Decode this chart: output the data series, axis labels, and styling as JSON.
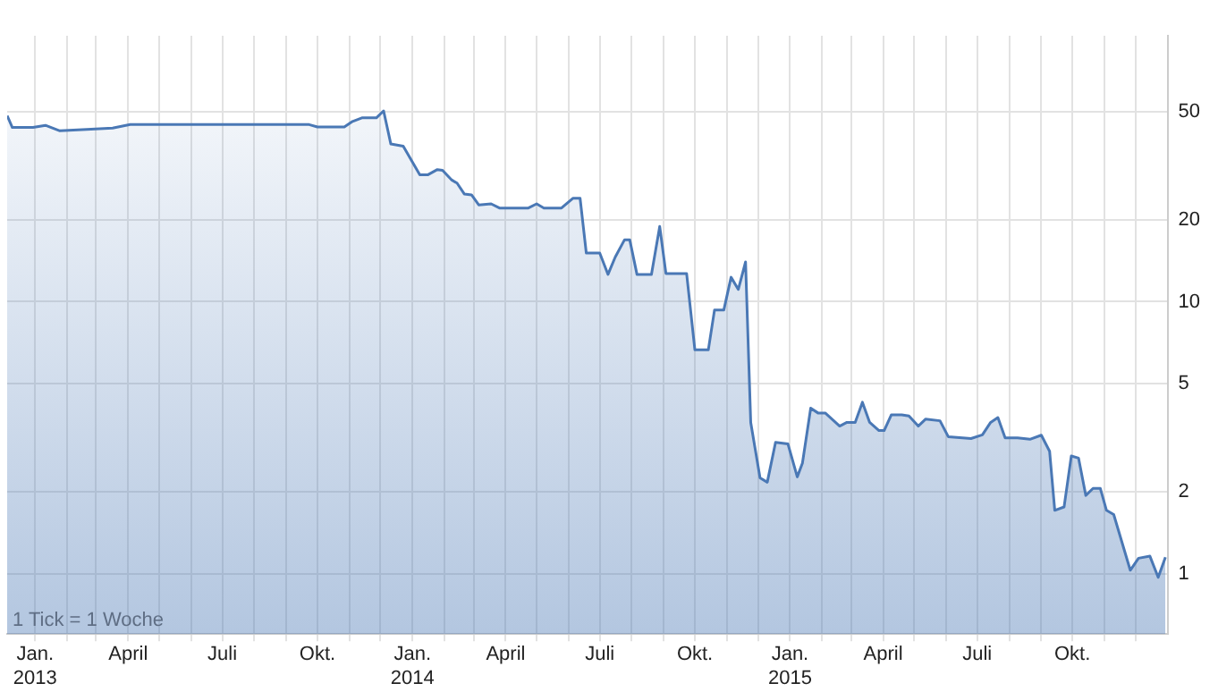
{
  "chart_data": {
    "type": "area",
    "log": "y",
    "grid": true,
    "legend": false,
    "marker": "none",
    "line_style": "solid",
    "annotations": [
      "1 Tick = 1 Woche"
    ],
    "xlim": [
      "2012-12-05",
      "2016-01-01"
    ],
    "xticks": [
      {
        "value": "2013-01-01",
        "label": "Jan. 2013"
      },
      {
        "value": "2013-02-01",
        "label": null
      },
      {
        "value": "2013-03-01",
        "label": null
      },
      {
        "value": "2013-04-01",
        "label": "April"
      },
      {
        "value": "2013-05-01",
        "label": null
      },
      {
        "value": "2013-06-01",
        "label": null
      },
      {
        "value": "2013-07-01",
        "label": "Juli"
      },
      {
        "value": "2013-08-01",
        "label": null
      },
      {
        "value": "2013-09-01",
        "label": null
      },
      {
        "value": "2013-10-01",
        "label": "Okt."
      },
      {
        "value": "2013-11-01",
        "label": null
      },
      {
        "value": "2013-12-01",
        "label": null
      },
      {
        "value": "2014-01-01",
        "label": "Jan. 2014"
      },
      {
        "value": "2014-02-01",
        "label": null
      },
      {
        "value": "2014-03-01",
        "label": null
      },
      {
        "value": "2014-04-01",
        "label": "April"
      },
      {
        "value": "2014-05-01",
        "label": null
      },
      {
        "value": "2014-06-01",
        "label": null
      },
      {
        "value": "2014-07-01",
        "label": "Juli"
      },
      {
        "value": "2014-08-01",
        "label": null
      },
      {
        "value": "2014-09-01",
        "label": null
      },
      {
        "value": "2014-10-01",
        "label": "Okt."
      },
      {
        "value": "2014-11-01",
        "label": null
      },
      {
        "value": "2014-12-01",
        "label": null
      },
      {
        "value": "2015-01-01",
        "label": "Jan. 2015"
      },
      {
        "value": "2015-02-01",
        "label": null
      },
      {
        "value": "2015-03-01",
        "label": null
      },
      {
        "value": "2015-04-01",
        "label": "April"
      },
      {
        "value": "2015-05-01",
        "label": null
      },
      {
        "value": "2015-06-01",
        "label": null
      },
      {
        "value": "2015-07-01",
        "label": "Juli"
      },
      {
        "value": "2015-08-01",
        "label": null
      },
      {
        "value": "2015-09-01",
        "label": null
      },
      {
        "value": "2015-10-01",
        "label": "Okt."
      },
      {
        "value": "2015-11-01",
        "label": null
      },
      {
        "value": "2015-12-01",
        "label": null
      }
    ],
    "ylim": [
      0.62,
      95
    ],
    "yticks": [
      1,
      2,
      5,
      10,
      20,
      50
    ],
    "x": [
      "2012-12-05",
      "2012-12-10",
      "2012-12-30",
      "2013-01-11",
      "2013-01-25",
      "2013-02-20",
      "2013-03-17",
      "2013-04-03",
      "2013-09-23",
      "2013-10-01",
      "2013-10-27",
      "2013-11-04",
      "2013-11-13",
      "2013-11-27",
      "2013-12-04",
      "2013-12-11",
      "2013-12-23",
      "2014-01-08",
      "2014-01-16",
      "2014-01-25",
      "2014-01-30",
      "2014-02-08",
      "2014-02-13",
      "2014-02-20",
      "2014-02-27",
      "2014-03-06",
      "2014-03-18",
      "2014-03-26",
      "2014-04-23",
      "2014-05-01",
      "2014-05-08",
      "2014-05-25",
      "2014-06-05",
      "2014-06-12",
      "2014-06-18",
      "2014-07-01",
      "2014-07-09",
      "2014-07-16",
      "2014-07-25",
      "2014-07-30",
      "2014-08-06",
      "2014-08-20",
      "2014-08-28",
      "2014-09-03",
      "2014-09-23",
      "2014-10-01",
      "2014-10-14",
      "2014-10-20",
      "2014-10-29",
      "2014-11-05",
      "2014-11-12",
      "2014-11-19",
      "2014-11-24",
      "2014-12-03",
      "2014-12-10",
      "2014-12-18",
      "2014-12-30",
      "2015-01-08",
      "2015-01-13",
      "2015-01-21",
      "2015-01-28",
      "2015-02-04",
      "2015-02-18",
      "2015-02-25",
      "2015-03-05",
      "2015-03-12",
      "2015-03-19",
      "2015-03-28",
      "2015-04-02",
      "2015-04-09",
      "2015-04-19",
      "2015-04-26",
      "2015-05-05",
      "2015-05-12",
      "2015-05-26",
      "2015-06-03",
      "2015-06-25",
      "2015-07-06",
      "2015-07-14",
      "2015-07-21",
      "2015-07-28",
      "2015-08-09",
      "2015-08-21",
      "2015-09-01",
      "2015-09-09",
      "2015-09-14",
      "2015-09-23",
      "2015-09-30",
      "2015-10-07",
      "2015-10-14",
      "2015-10-21",
      "2015-10-28",
      "2015-11-03",
      "2015-11-10",
      "2015-11-26",
      "2015-12-04",
      "2015-12-15",
      "2015-12-23",
      "2015-12-30"
    ],
    "series": [
      {
        "color": "#4a78b5",
        "values": [
          48.3,
          43.7,
          43.7,
          44.5,
          42.5,
          43,
          43.5,
          44.8,
          44.8,
          43.9,
          43.9,
          46,
          47.4,
          47.4,
          50.3,
          38,
          37.3,
          29.3,
          29.3,
          30.6,
          30.4,
          28,
          27.3,
          24.9,
          24.7,
          22.7,
          22.9,
          22.1,
          22.1,
          22.9,
          22.1,
          22.1,
          24,
          24,
          15.1,
          15.1,
          12.6,
          14.6,
          16.9,
          16.9,
          12.6,
          12.6,
          18.9,
          12.7,
          12.7,
          6.65,
          6.65,
          9.33,
          9.33,
          12.3,
          11.1,
          14,
          3.6,
          2.25,
          2.17,
          3.04,
          3,
          2.27,
          2.55,
          4.06,
          3.9,
          3.9,
          3.49,
          3.6,
          3.6,
          4.27,
          3.6,
          3.36,
          3.36,
          3.84,
          3.84,
          3.8,
          3.49,
          3.7,
          3.65,
          3.19,
          3.14,
          3.24,
          3.6,
          3.75,
          3.16,
          3.16,
          3.12,
          3.23,
          2.82,
          1.71,
          1.76,
          2.71,
          2.66,
          1.94,
          2.06,
          2.06,
          1.71,
          1.65,
          1.03,
          1.14,
          1.16,
          0.97,
          1.15
        ]
      }
    ]
  }
}
